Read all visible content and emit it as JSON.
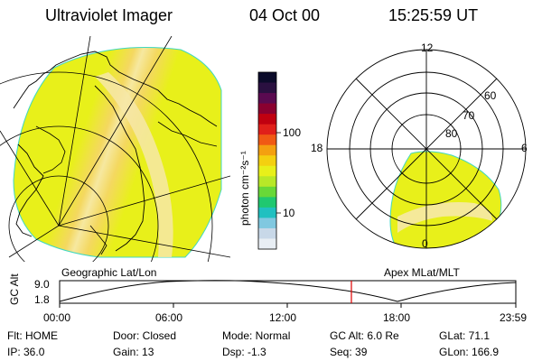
{
  "header": {
    "instrument": "Ultraviolet Imager",
    "date": "04 Oct 00",
    "time": "15:25:59 UT"
  },
  "colorbar": {
    "unit_label": "photon cm⁻²s⁻¹",
    "ticks": [
      "100",
      "10"
    ],
    "colors": [
      "#0b0b2a",
      "#2a1040",
      "#5a0a50",
      "#8a0030",
      "#c00010",
      "#e0201a",
      "#f05a14",
      "#f4a010",
      "#f4d010",
      "#e8f01a",
      "#b8e828",
      "#68d838",
      "#20c870",
      "#20c0c0",
      "#80c8e0",
      "#c8d8e8",
      "#e8eef4"
    ]
  },
  "left_map": {
    "label": "Geographic Lat/Lon"
  },
  "right_map": {
    "label": "Apex MLat/MLT",
    "mlt_labels": {
      "top": "12",
      "left": "18",
      "right": "6",
      "bottom": "0"
    },
    "lat_labels": [
      "60",
      "70",
      "80"
    ]
  },
  "timeline": {
    "axis_label": "GC Alt",
    "y_labels": [
      "9.0",
      "1.8"
    ],
    "x_labels": [
      "00:00",
      "06:00",
      "12:00",
      "18:00",
      "23:59"
    ],
    "marker_color": "#e00000"
  },
  "info": {
    "flt": "Flt: HOME",
    "ip": "IP: 36.0",
    "door": "Door: Closed",
    "gain": "Gain: 13",
    "mode": "Mode: Normal",
    "dsp": "Dsp:   -1.3",
    "gcalt": "GC Alt: 6.0 Re",
    "seq": "Seq: 39",
    "glat": "GLat:  71.1",
    "glon": "GLon: 166.9"
  }
}
